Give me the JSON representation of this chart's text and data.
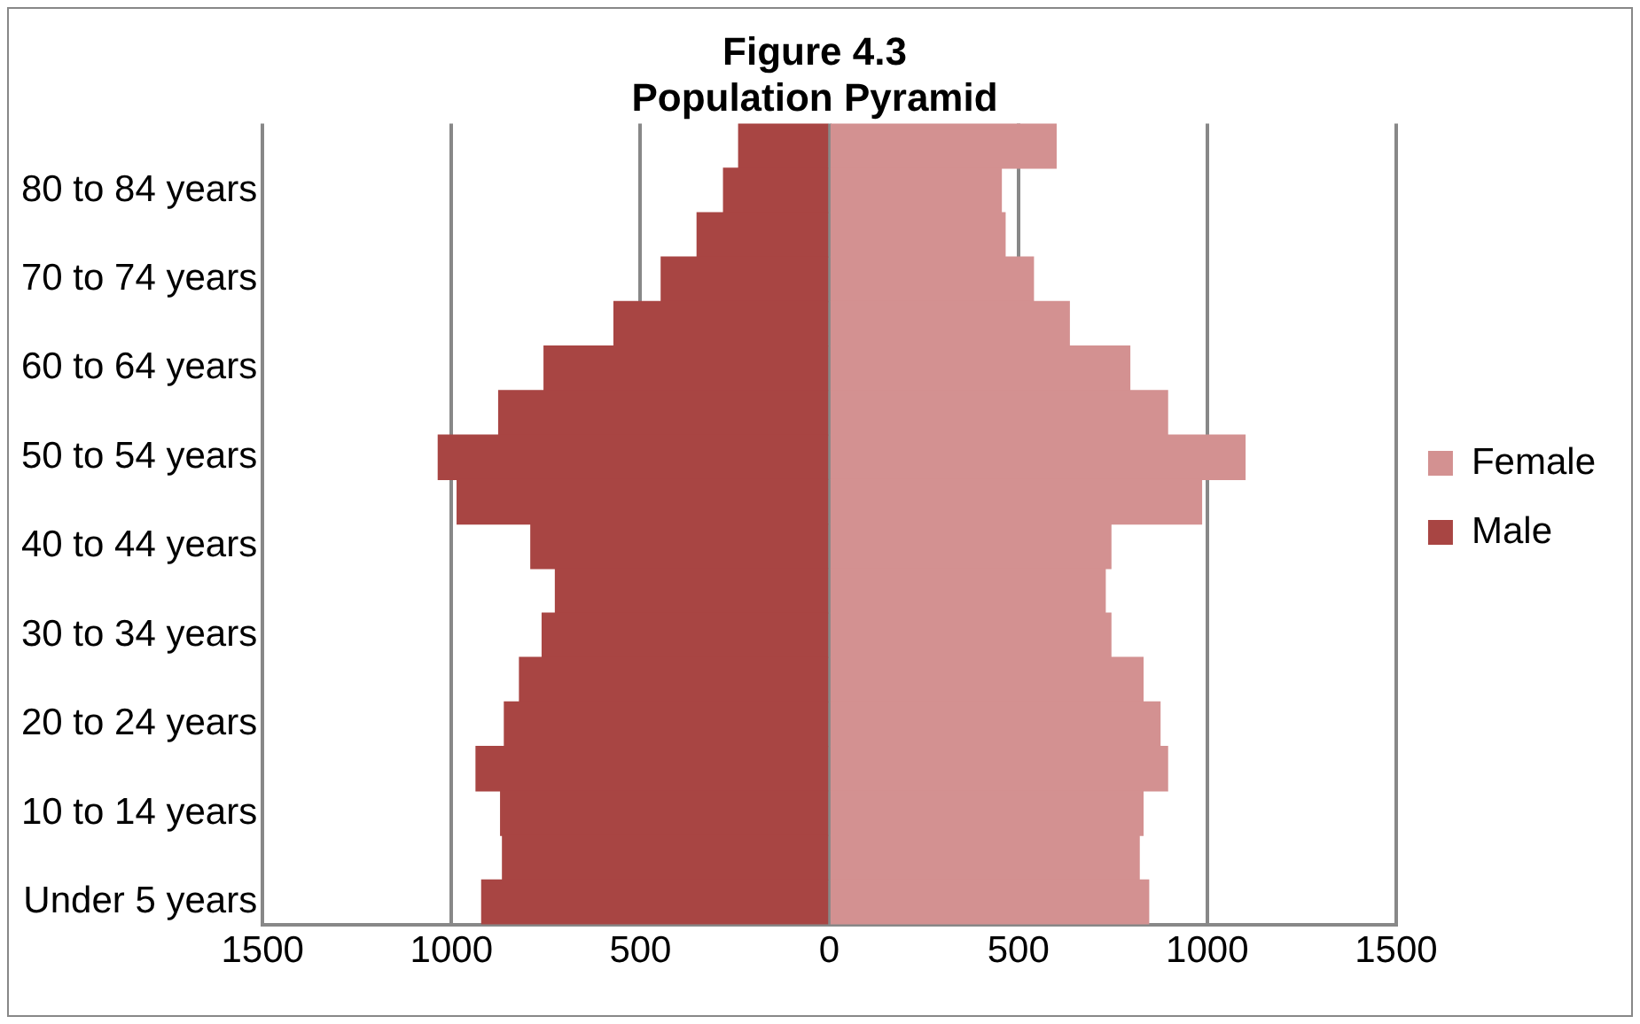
{
  "chart_data": {
    "type": "bar",
    "orientation": "horizontal",
    "stacked": true,
    "title": "Figure 4.3",
    "subtitle": "Population Pyramid",
    "categories": [
      null,
      "80 to 84 years",
      null,
      "70 to 74 years",
      null,
      "60 to 64 years",
      null,
      "50 to 54 years",
      null,
      "40 to 44 years",
      null,
      "30 to 34 years",
      null,
      "20 to 24 years",
      null,
      "10 to 14 years",
      null,
      "Under 5 years"
    ],
    "series": [
      {
        "name": "Female",
        "color": "#d39191",
        "values": [
          600,
          455,
          465,
          540,
          635,
          795,
          895,
          1100,
          985,
          745,
          730,
          745,
          830,
          875,
          895,
          830,
          820,
          845
        ]
      },
      {
        "name": "Male",
        "color": "#a84543",
        "values": [
          -240,
          -280,
          -350,
          -445,
          -570,
          -755,
          -875,
          -1035,
          -985,
          -790,
          -725,
          -760,
          -820,
          -860,
          -935,
          -870,
          -865,
          -920
        ]
      }
    ],
    "xlim": [
      -1500,
      1500
    ],
    "xticks": [
      {
        "value": -1500,
        "label": "1500"
      },
      {
        "value": -1000,
        "label": "1000"
      },
      {
        "value": -500,
        "label": "500"
      },
      0,
      500,
      1000,
      1500
    ],
    "grid": "x",
    "legend": "right"
  }
}
